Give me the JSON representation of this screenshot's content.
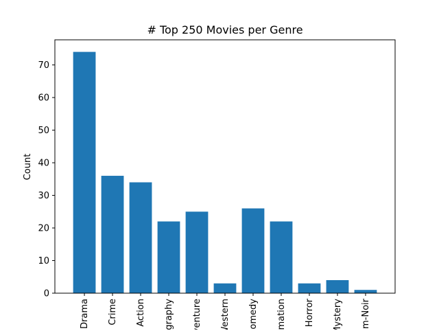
{
  "chart_data": {
    "type": "bar",
    "title": "# Top 250 Movies per Genre",
    "xlabel": "",
    "ylabel": "Count",
    "categories": [
      "Drama",
      "Crime",
      "Action",
      "Biography",
      "Adventure",
      "Western",
      "Comedy",
      "Animation",
      "Horror",
      "Mystery",
      "Film-Noir"
    ],
    "values": [
      74,
      36,
      34,
      22,
      25,
      3,
      26,
      22,
      3,
      4,
      1
    ],
    "ylim": [
      0,
      77.7
    ],
    "yticks": [
      0,
      10,
      20,
      30,
      40,
      50,
      60,
      70
    ],
    "bar_color": "#1f77b4",
    "grid": false,
    "legend": "none"
  }
}
